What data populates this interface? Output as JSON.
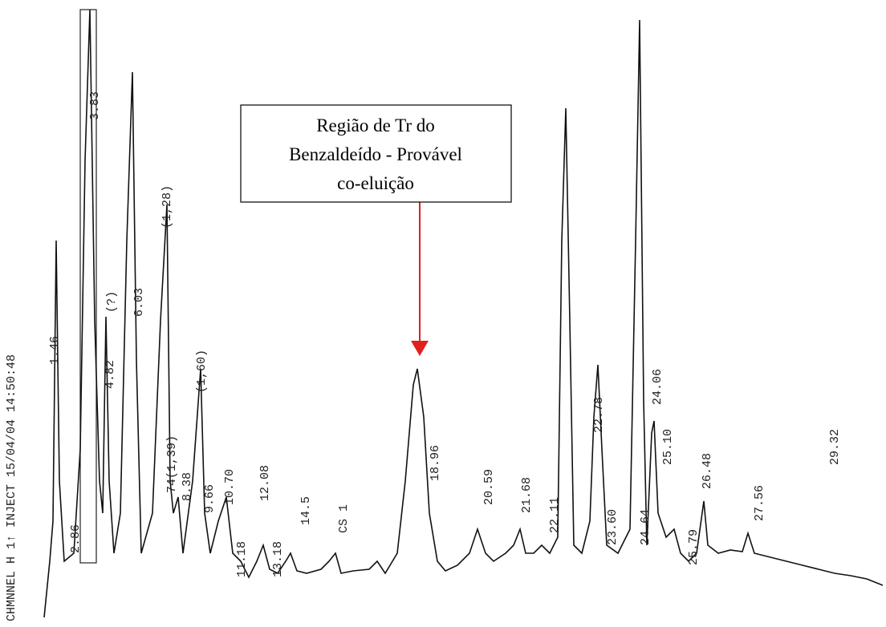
{
  "header": {
    "text": "CHMNNEL H 1↑ INJECT 15/04/04 14:50:48"
  },
  "annotation": {
    "lines": [
      "Região de Tr do",
      "Benzaldeído - Provável",
      "co-eluição"
    ]
  },
  "peak_labels": [
    "1.46",
    "2.86",
    "3.83",
    "4.82",
    "(?)",
    "6.03",
    "(1,28)",
    "74(1,39)",
    "(1,60)",
    "8.38",
    "9.66",
    "10.70",
    "11.18",
    "12.08",
    "13.18",
    "14.5",
    "CS 1",
    "18.96",
    "20.59",
    "21.68",
    "22.11",
    "22.78",
    "23.60",
    "24.06",
    "24.64",
    "25.10",
    "25.79",
    "26.48",
    "27.56",
    "29.32"
  ]
}
